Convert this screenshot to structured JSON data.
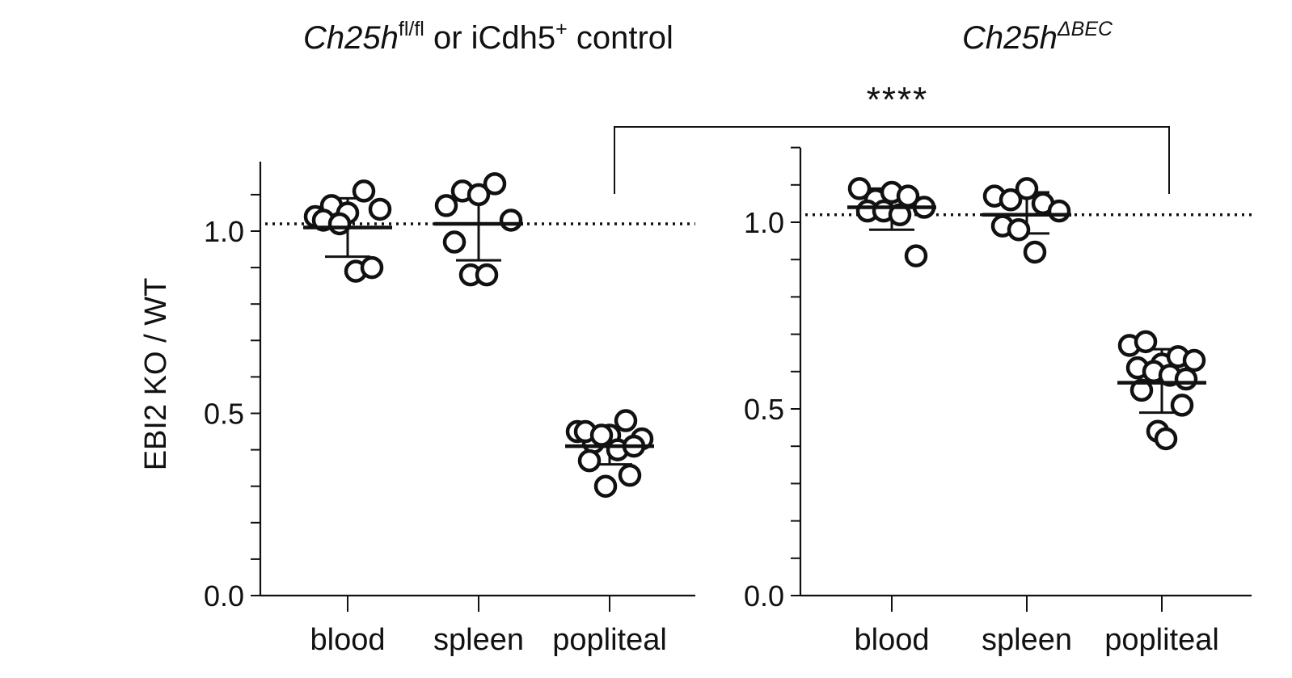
{
  "ylabel": "EBI2 KO / WT",
  "significance": "****",
  "chart_data": [
    {
      "type": "scatter",
      "title": "Ch25hfl/fl or iCdh5+ control",
      "title_parts": {
        "gene": "Ch25h",
        "sup1": "fl/fl",
        "mid": " or iCdh5",
        "sup2": "+",
        "tail": " control"
      },
      "ylabel": "EBI2 KO / WT",
      "ylim": [
        0,
        1.2
      ],
      "yticks": [
        "0.0",
        "0.5",
        "1.0"
      ],
      "reference_line": 1.02,
      "categories": [
        "blood",
        "spleen",
        "popliteal"
      ],
      "series": [
        {
          "category": "blood",
          "mean": 1.01,
          "sd": [
            0.93,
            1.09
          ],
          "values": [
            1.04,
            1.07,
            1.05,
            1.11,
            1.06,
            1.03,
            1.02,
            0.89,
            0.9
          ]
        },
        {
          "category": "spleen",
          "mean": 1.02,
          "sd": [
            0.92,
            1.12
          ],
          "values": [
            1.07,
            1.11,
            1.1,
            1.13,
            1.03,
            0.97,
            0.88,
            0.88
          ]
        },
        {
          "category": "popliteal",
          "mean": 0.41,
          "sd": [
            0.36,
            0.46
          ],
          "values": [
            0.45,
            0.42,
            0.44,
            0.48,
            0.43,
            0.45,
            0.44,
            0.4,
            0.41,
            0.37,
            0.33,
            0.3
          ]
        }
      ]
    },
    {
      "type": "scatter",
      "title": "Ch25hΔBEC",
      "title_parts": {
        "gene": "Ch25h",
        "sup1": "ΔBEC"
      },
      "ylabel": "",
      "ylim": [
        0,
        1.2
      ],
      "yticks": [
        "0.0",
        "0.5",
        "1.0"
      ],
      "reference_line": 1.02,
      "categories": [
        "blood",
        "spleen",
        "popliteal"
      ],
      "series": [
        {
          "category": "blood",
          "mean": 1.04,
          "sd": [
            0.98,
            1.09
          ],
          "values": [
            1.09,
            1.06,
            1.08,
            1.07,
            1.04,
            1.03,
            1.03,
            1.02,
            0.91
          ]
        },
        {
          "category": "spleen",
          "mean": 1.02,
          "sd": [
            0.97,
            1.08
          ],
          "values": [
            1.07,
            1.06,
            1.09,
            1.05,
            1.03,
            0.99,
            0.98,
            0.92
          ]
        },
        {
          "category": "popliteal",
          "mean": 0.57,
          "sd": [
            0.49,
            0.66
          ],
          "values": [
            0.67,
            0.68,
            0.62,
            0.64,
            0.63,
            0.61,
            0.6,
            0.59,
            0.58,
            0.55,
            0.51,
            0.44,
            0.42
          ]
        }
      ]
    }
  ]
}
